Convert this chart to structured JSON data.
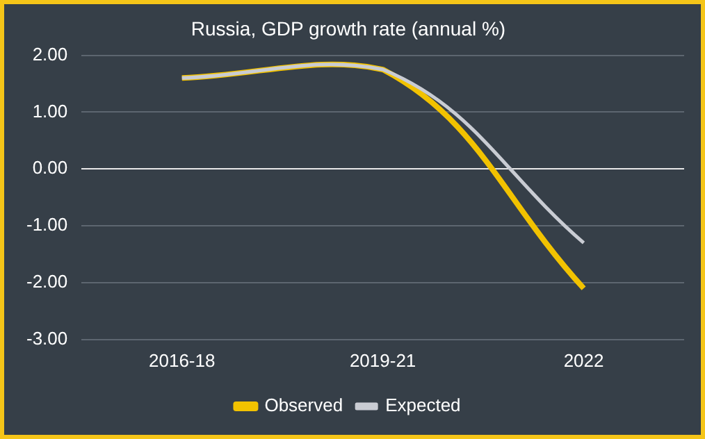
{
  "chart_data": {
    "type": "line",
    "title": "Russia, GDP growth rate (annual %)",
    "categories": [
      "2016-18",
      "2019-21",
      "2022"
    ],
    "series": [
      {
        "name": "Observed",
        "color": "#f2c200",
        "values": [
          1.6,
          1.75,
          -2.1
        ]
      },
      {
        "name": "Expected",
        "color": "#c9ccd3",
        "values": [
          1.6,
          1.75,
          -1.3
        ]
      }
    ],
    "ylim": [
      -3,
      2
    ],
    "yticks": [
      {
        "value": -3,
        "label": "-3.00"
      },
      {
        "value": -2,
        "label": "-2.00"
      },
      {
        "value": -1,
        "label": "-1.00"
      },
      {
        "value": 0,
        "label": "0.00"
      },
      {
        "value": 1,
        "label": "1.00"
      },
      {
        "value": 2,
        "label": "2.00"
      }
    ],
    "grid": "y",
    "legend": "bottom",
    "marker": "none",
    "line_style": "solid"
  }
}
